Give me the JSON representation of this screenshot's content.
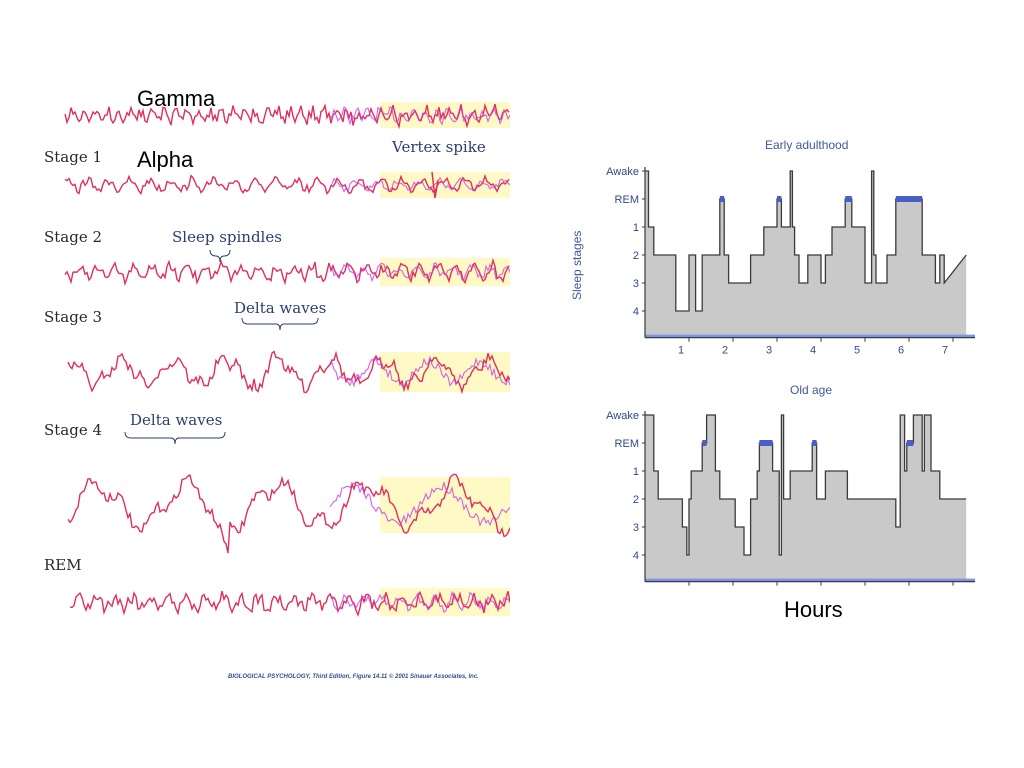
{
  "overlay": {
    "gamma": "Gamma",
    "alpha": "Alpha",
    "hours": "Hours"
  },
  "eeg": {
    "stages": [
      "Stage 1",
      "Stage 2",
      "Stage 3",
      "Stage 4",
      "REM"
    ],
    "annotations": {
      "vertex_spike": "Vertex spike",
      "sleep_spindles": "Sleep spindles",
      "delta_waves_3": "Delta waves",
      "delta_waves_4": "Delta waves"
    },
    "caption": "BIOLOGICAL PSYCHOLOGY, Third Edition, Figure 14.11  © 2001 Sinauer Associates, Inc.",
    "colors": {
      "trace": "#e0305a",
      "trace_alt": "#c83ce0",
      "highlight": "#fff05a"
    }
  },
  "chart_data": [
    {
      "type": "line",
      "title": "Early adulthood",
      "ylabel": "Sleep stages",
      "y_categories": [
        "Awake",
        "REM",
        "1",
        "2",
        "3",
        "4"
      ],
      "x_ticks": [
        1,
        2,
        3,
        4,
        5,
        6,
        7
      ],
      "xlim": [
        0,
        7.5
      ],
      "x": [
        0,
        0.08,
        0.08,
        0.2,
        0.2,
        0.7,
        0.7,
        1.0,
        1.0,
        1.15,
        1.15,
        1.3,
        1.3,
        1.7,
        1.7,
        1.8,
        1.8,
        1.9,
        1.9,
        2.4,
        2.4,
        2.7,
        2.7,
        3.0,
        3.0,
        3.1,
        3.1,
        3.3,
        3.3,
        3.35,
        3.35,
        3.4,
        3.4,
        3.5,
        3.5,
        3.7,
        3.7,
        4.0,
        4.0,
        4.1,
        4.1,
        4.25,
        4.25,
        4.55,
        4.55,
        4.7,
        4.7,
        5.0,
        5.0,
        5.15,
        5.15,
        5.2,
        5.2,
        5.25,
        5.25,
        5.5,
        5.5,
        5.7,
        5.7,
        6.3,
        6.3,
        6.6,
        6.6,
        6.7,
        6.7,
        6.8,
        6.8,
        7.3
      ],
      "y": [
        "Awake",
        "Awake",
        "1",
        "1",
        "2",
        "2",
        "4",
        "4",
        "2",
        "2",
        "4",
        "4",
        "2",
        "2",
        "REM",
        "REM",
        "2",
        "2",
        "3",
        "3",
        "2",
        "2",
        "1",
        "1",
        "REM",
        "REM",
        "1",
        "1",
        "Awake",
        "Awake",
        "1",
        "1",
        "2",
        "2",
        "3",
        "3",
        "2",
        "2",
        "3",
        "3",
        "2",
        "2",
        "1",
        "1",
        "REM",
        "REM",
        "1",
        "1",
        "3",
        "3",
        "Awake",
        "Awake",
        "2",
        "2",
        "3",
        "3",
        "2",
        "2",
        "REM",
        "REM",
        "2",
        "2",
        "3",
        "3",
        "2",
        "2",
        "3",
        "2"
      ]
    },
    {
      "type": "line",
      "title": "Old age",
      "y_categories": [
        "Awake",
        "REM",
        "1",
        "2",
        "3",
        "4"
      ],
      "xlim": [
        0,
        7.5
      ],
      "x": [
        0,
        0.2,
        0.2,
        0.3,
        0.3,
        0.85,
        0.85,
        0.95,
        0.95,
        1.0,
        1.0,
        1.05,
        1.05,
        1.3,
        1.3,
        1.4,
        1.4,
        1.6,
        1.6,
        1.7,
        1.7,
        2.05,
        2.05,
        2.25,
        2.25,
        2.4,
        2.4,
        2.55,
        2.55,
        2.6,
        2.6,
        2.9,
        2.9,
        3.05,
        3.05,
        3.1,
        3.1,
        3.15,
        3.15,
        3.3,
        3.3,
        3.8,
        3.8,
        3.9,
        3.9,
        4.1,
        4.1,
        4.6,
        4.6,
        5.7,
        5.7,
        5.8,
        5.8,
        5.9,
        5.9,
        5.95,
        5.95,
        6.1,
        6.1,
        6.3,
        6.3,
        6.35,
        6.35,
        6.5,
        6.5,
        6.7,
        6.7,
        6.8,
        6.8,
        7.3
      ],
      "y": [
        "Awake",
        "Awake",
        "1",
        "1",
        "2",
        "2",
        "3",
        "3",
        "4",
        "4",
        "2",
        "2",
        "1",
        "1",
        "REM",
        "REM",
        "Awake",
        "Awake",
        "1",
        "1",
        "2",
        "2",
        "3",
        "3",
        "4",
        "4",
        "2",
        "2",
        "1",
        "1",
        "REM",
        "REM",
        "1",
        "1",
        "4",
        "4",
        "Awake",
        "Awake",
        "2",
        "2",
        "1",
        "1",
        "REM",
        "REM",
        "2",
        "2",
        "1",
        "1",
        "2",
        "2",
        "3",
        "3",
        "Awake",
        "Awake",
        "1",
        "1",
        "REM",
        "REM",
        "Awake",
        "Awake",
        "1",
        "1",
        "Awake",
        "Awake",
        "1",
        "1",
        "2",
        "2",
        "2",
        "2"
      ]
    }
  ]
}
